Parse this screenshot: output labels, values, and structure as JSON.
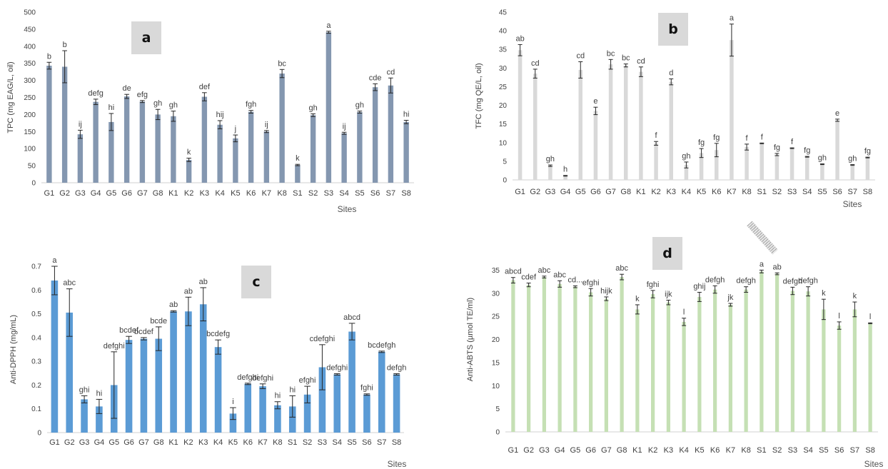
{
  "chart_data": [
    {
      "panel": "a",
      "type": "bar",
      "color": "#8497b0",
      "ylabel": "TPC (mg EAG/L, oil)",
      "xlabel": "Sites",
      "ylim": [
        0,
        500
      ],
      "yticks": [
        0,
        50,
        100,
        150,
        200,
        250,
        300,
        350,
        400,
        450,
        500
      ],
      "categories": [
        "G1",
        "G2",
        "G3",
        "G4",
        "G5",
        "G6",
        "G7",
        "G8",
        "K1",
        "K2",
        "K3",
        "K4",
        "K5",
        "K6",
        "K7",
        "K8",
        "S1",
        "S2",
        "S3",
        "S4",
        "S5",
        "S6",
        "S7",
        "S8"
      ],
      "values": [
        343,
        340,
        142,
        237,
        178,
        253,
        238,
        200,
        195,
        67,
        252,
        170,
        130,
        208,
        150,
        320,
        52,
        198,
        441,
        145,
        207,
        280,
        285,
        178
      ],
      "errors": [
        10,
        47,
        12,
        8,
        25,
        6,
        3,
        15,
        15,
        5,
        12,
        12,
        10,
        4,
        3,
        12,
        2,
        4,
        3,
        3,
        3,
        10,
        22,
        5
      ],
      "letters": [
        "b",
        "b",
        "ij",
        "defg",
        "hi",
        "de",
        "efg",
        "gh",
        "gh",
        "k",
        "def",
        "hij",
        "j",
        "fgh",
        "ij",
        "bc",
        "k",
        "gh",
        "a",
        "ij",
        "gh",
        "cde",
        "cd",
        "hi"
      ]
    },
    {
      "panel": "b",
      "type": "bar",
      "color": "#d9d9d9",
      "ylabel": "TFC (mg QE/L, oil)",
      "xlabel": "Sites",
      "ylim": [
        0,
        45
      ],
      "yticks": [
        0,
        5,
        10,
        15,
        20,
        25,
        30,
        35,
        40,
        45
      ],
      "categories": [
        "G1",
        "G2",
        "G3",
        "G4",
        "G5",
        "G6",
        "G7",
        "G8",
        "K1",
        "K2",
        "K3",
        "K4",
        "K5",
        "K6",
        "K7",
        "K8",
        "S1",
        "S2",
        "S3",
        "S4",
        "S5",
        "S6",
        "S7",
        "S8"
      ],
      "values": [
        34.8,
        28.5,
        3.8,
        1.1,
        29.5,
        18.5,
        31,
        30.7,
        29,
        9.8,
        26.3,
        4,
        7.2,
        8,
        37.5,
        8.8,
        9.8,
        6.8,
        8.5,
        6.2,
        4.2,
        16,
        4,
        6
      ],
      "errors": [
        1.5,
        1.2,
        0.2,
        0.1,
        2.2,
        1,
        1.3,
        0.4,
        1.3,
        0.5,
        0.8,
        0.8,
        1.2,
        1.8,
        4.3,
        0.8,
        0.1,
        0.3,
        0.1,
        0.1,
        0.1,
        0.3,
        0.1,
        0.1
      ],
      "letters": [
        "ab",
        "cd",
        "gh",
        "h",
        "cd",
        "e",
        "bc",
        "bc",
        "cd",
        "f",
        "d",
        "gh",
        "fg",
        "fg",
        "a",
        "f",
        "f",
        "fg",
        "f",
        "fg",
        "gh",
        "e",
        "gh",
        "fg"
      ]
    },
    {
      "panel": "c",
      "type": "bar",
      "color": "#5b9bd5",
      "ylabel": "Anti-DPPH (mg/mL)",
      "xlabel": "Sites",
      "ylim": [
        0,
        0.7
      ],
      "yticks": [
        0,
        0.1,
        0.2,
        0.3,
        0.4,
        0.5,
        0.6,
        0.7
      ],
      "categories": [
        "G1",
        "G2",
        "G3",
        "G4",
        "G5",
        "G6",
        "G7",
        "G8",
        "K1",
        "K2",
        "K3",
        "K4",
        "K5",
        "K6",
        "K7",
        "K8",
        "S1",
        "S2",
        "S3",
        "S4",
        "S5",
        "S6",
        "S7",
        "S8"
      ],
      "values": [
        0.64,
        0.505,
        0.14,
        0.11,
        0.2,
        0.39,
        0.395,
        0.395,
        0.51,
        0.51,
        0.54,
        0.36,
        0.08,
        0.205,
        0.195,
        0.115,
        0.11,
        0.16,
        0.275,
        0.245,
        0.425,
        0.16,
        0.34,
        0.245
      ],
      "errors": [
        0.06,
        0.1,
        0.015,
        0.03,
        0.14,
        0.015,
        0.005,
        0.05,
        0.003,
        0.06,
        0.07,
        0.03,
        0.025,
        0.003,
        0.01,
        0.015,
        0.045,
        0.035,
        0.095,
        0.003,
        0.035,
        0.003,
        0.003,
        0.003
      ],
      "letters": [
        "a",
        "abc",
        "ghi",
        "hi",
        "defghi",
        "bcdef",
        "bcdef",
        "bcde",
        "ab",
        "ab",
        "ab",
        "bcdefg",
        "i",
        "defghi",
        "defghi",
        "hi",
        "hi",
        "efghi",
        "cdefghi",
        "defghi",
        "abcd",
        "fghi",
        "bcdefgh",
        "defgh"
      ]
    },
    {
      "panel": "d",
      "type": "bar",
      "color": "#c5e0b4",
      "ylabel": "Anti-ABTS (µmol TE/ml)",
      "xlabel": "Sites",
      "ylim": [
        0,
        40
      ],
      "yticks": [
        0,
        5,
        10,
        15,
        20,
        25,
        30,
        35
      ],
      "categories": [
        "G1",
        "G2",
        "G3",
        "G4",
        "G5",
        "G6",
        "G7",
        "G8",
        "K1",
        "K2",
        "K3",
        "K4",
        "K5",
        "K6",
        "K7",
        "K8",
        "S1",
        "S2",
        "S3",
        "S4",
        "S5",
        "S6",
        "S7",
        "S8"
      ],
      "values": [
        32.8,
        31.8,
        33.5,
        32,
        31.4,
        30.2,
        28.8,
        33.5,
        26.5,
        29.8,
        28,
        23.8,
        29.2,
        30.8,
        27.5,
        30.8,
        34.7,
        34.2,
        30.5,
        30.4,
        26.5,
        23,
        26.5,
        23.5
      ],
      "errors": [
        0.6,
        0.4,
        0.2,
        0.7,
        0.2,
        0.8,
        0.4,
        0.6,
        1,
        0.8,
        0.5,
        0.8,
        1,
        0.8,
        0.3,
        0.6,
        0.3,
        0.2,
        0.8,
        1,
        2.2,
        0.8,
        1.6,
        0.1
      ],
      "letters": [
        "abcd",
        "cdef",
        "abc",
        "abc",
        "cd...",
        "efghi",
        "hijk",
        "abc",
        "k",
        "fghi",
        "ijk",
        "l",
        "ghij",
        "defgh",
        "jk",
        "defgh",
        "a",
        "ab",
        "defgh",
        "defgh",
        "k",
        "l",
        "k",
        "l"
      ]
    }
  ]
}
